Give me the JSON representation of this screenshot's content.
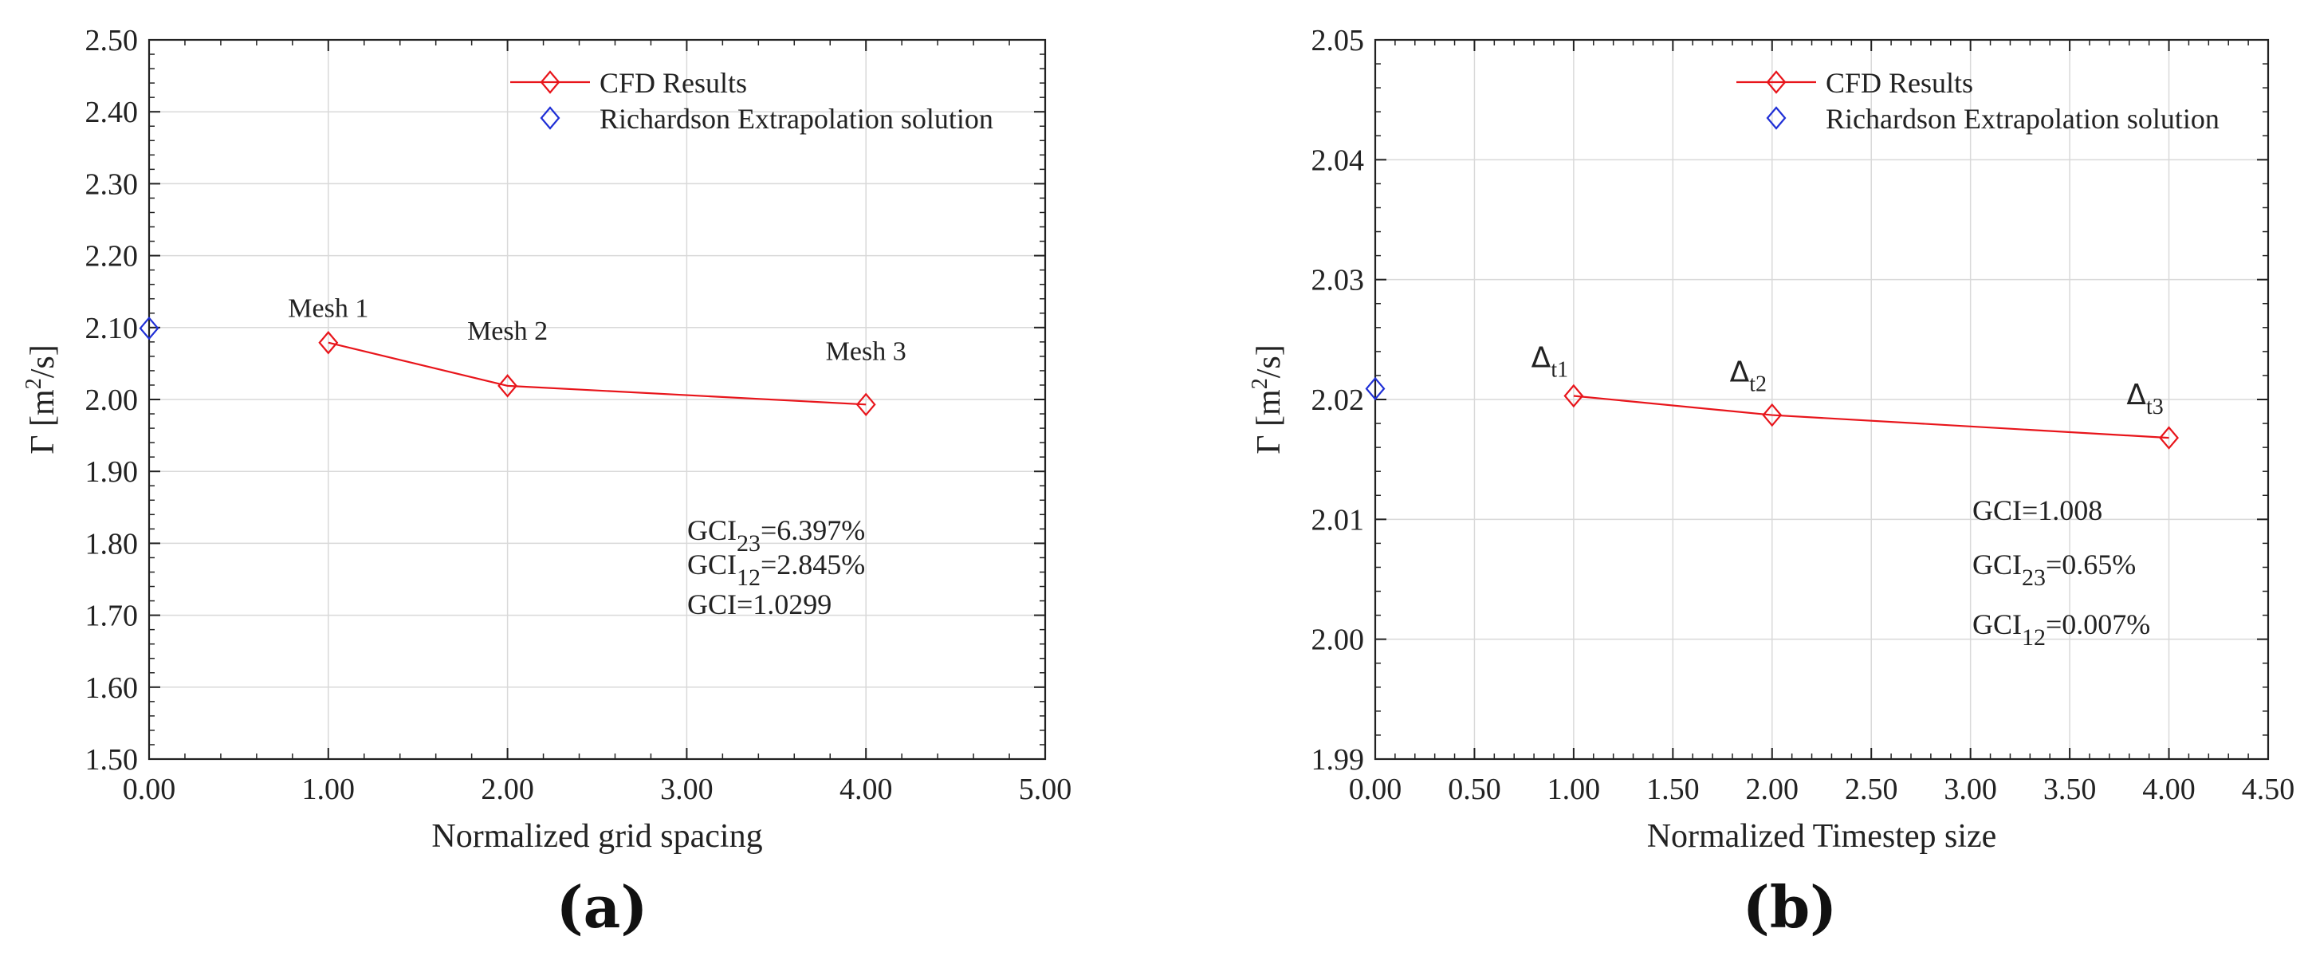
{
  "chart_data": [
    {
      "type": "line",
      "panel": "a",
      "caption": "(a)",
      "xlabel": "Normalized grid spacing",
      "ylabel_main": "Γ [m",
      "ylabel_sup": "2",
      "ylabel_end": "/s]",
      "xlim": [
        0,
        5
      ],
      "ylim": [
        1.5,
        2.5
      ],
      "xticks": [
        0,
        1,
        2,
        3,
        4,
        5
      ],
      "xtick_labels": [
        "0.00",
        "1.00",
        "2.00",
        "3.00",
        "4.00",
        "5.00"
      ],
      "yticks": [
        1.5,
        1.6,
        1.7,
        1.8,
        1.9,
        2.0,
        2.1,
        2.2,
        2.3,
        2.4,
        2.5
      ],
      "ytick_labels": [
        "1.50",
        "1.60",
        "1.70",
        "1.80",
        "1.90",
        "2.00",
        "2.10",
        "2.20",
        "2.30",
        "2.40",
        "2.50"
      ],
      "grid": true,
      "legend": [
        "CFD Results",
        "Richardson Extrapolation solution"
      ],
      "series": [
        {
          "name": "CFD Results",
          "color": "#e8151b",
          "x": [
            1,
            2,
            4
          ],
          "y": [
            2.079,
            2.019,
            1.993
          ]
        },
        {
          "name": "Richardson Extrapolation solution",
          "color": "#1f2fd6",
          "x": [
            0
          ],
          "y": [
            2.099
          ]
        }
      ],
      "point_labels": [
        {
          "main": "Mesh 1",
          "sub": "",
          "x": 1,
          "y": 2.079
        },
        {
          "main": "Mesh 2",
          "sub": "",
          "x": 2,
          "y": 2.019
        },
        {
          "main": "Mesh 3",
          "sub": "",
          "x": 4,
          "y": 1.993
        }
      ],
      "annotations": [
        {
          "main": "GCI",
          "sub": "23",
          "rest": "=6.397%"
        },
        {
          "main": "GCI",
          "sub": "12",
          "rest": "=2.845%"
        },
        {
          "main": "GCI=1.0299",
          "sub": "",
          "rest": ""
        }
      ]
    },
    {
      "type": "line",
      "panel": "b",
      "caption": "(b)",
      "xlabel": "Normalized Timestep size",
      "ylabel_main": "Γ [m",
      "ylabel_sup": "2",
      "ylabel_end": "/s]",
      "xlim": [
        0,
        4.5
      ],
      "ylim": [
        1.99,
        2.05
      ],
      "xticks": [
        0,
        0.5,
        1,
        1.5,
        2,
        2.5,
        3,
        3.5,
        4,
        4.5
      ],
      "xtick_labels": [
        "0.00",
        "0.50",
        "1.00",
        "1.50",
        "2.00",
        "2.50",
        "3.00",
        "3.50",
        "4.00",
        "4.50"
      ],
      "yticks": [
        1.99,
        2.0,
        2.01,
        2.02,
        2.03,
        2.04,
        2.05
      ],
      "ytick_labels": [
        "1.99",
        "2.00",
        "2.01",
        "2.02",
        "2.03",
        "2.04",
        "2.05"
      ],
      "grid": true,
      "legend": [
        "CFD Results",
        "Richardson Extrapolation solution"
      ],
      "series": [
        {
          "name": "CFD Results",
          "color": "#e8151b",
          "x": [
            1,
            2,
            4
          ],
          "y": [
            2.0203,
            2.0187,
            2.0168
          ]
        },
        {
          "name": "Richardson Extrapolation solution",
          "color": "#1f2fd6",
          "x": [
            0
          ],
          "y": [
            2.0209
          ]
        }
      ],
      "point_labels": [
        {
          "main": "Δ",
          "sub": "t1",
          "x": 1,
          "y": 2.0203
        },
        {
          "main": "Δ",
          "sub": "t2",
          "x": 2,
          "y": 2.0187
        },
        {
          "main": "Δ",
          "sub": "t3",
          "x": 4,
          "y": 2.0168
        }
      ],
      "annotations": [
        {
          "main": "GCI=1.008",
          "sub": "",
          "rest": ""
        },
        {
          "main": "GCI",
          "sub": "23",
          "rest": "=0.65%"
        },
        {
          "main": "GCI",
          "sub": "12",
          "rest": "=0.007%"
        }
      ]
    }
  ]
}
